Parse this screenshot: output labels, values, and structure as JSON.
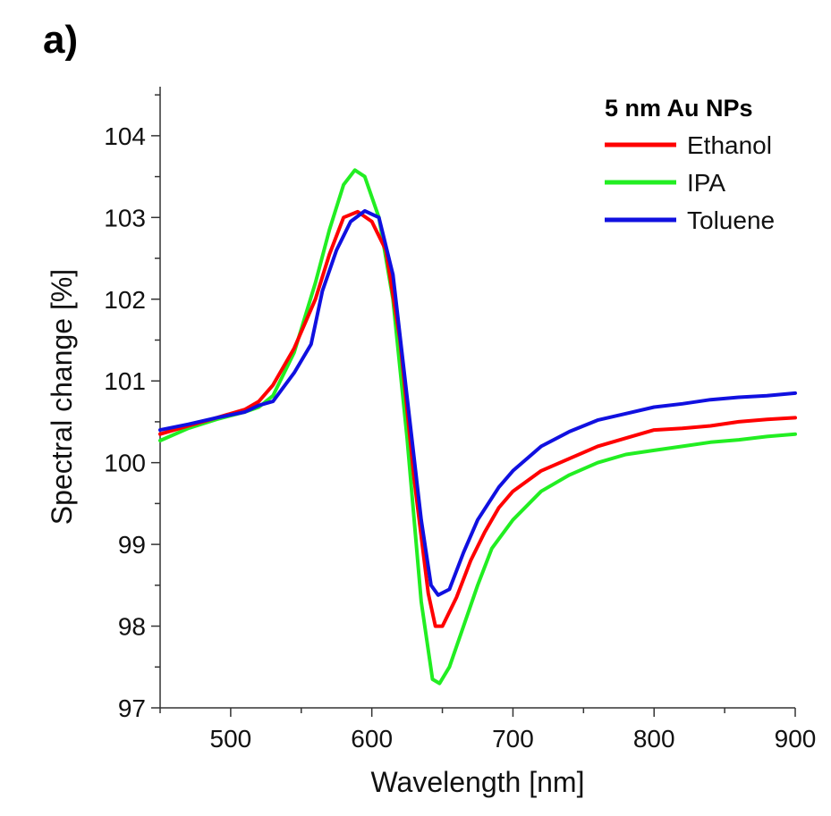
{
  "panel_label": "a)",
  "chart_data": {
    "type": "line",
    "xlabel": "Wavelength [nm]",
    "ylabel": "Spectral change [%]",
    "xlim": [
      450,
      900
    ],
    "ylim": [
      97,
      104.6
    ],
    "x_ticks": [
      500,
      600,
      700,
      800,
      900
    ],
    "y_ticks": [
      97,
      98,
      99,
      100,
      101,
      102,
      103,
      104
    ],
    "grid": false,
    "legend": {
      "title": "5 nm Au NPs",
      "position": "top-right"
    },
    "colors": {
      "Ethanol": "#ff0000",
      "IPA": "#22ee22",
      "Toluene": "#1010e0"
    },
    "series": [
      {
        "name": "Ethanol",
        "color": "#ff0000",
        "points": [
          [
            450,
            100.35
          ],
          [
            470,
            100.45
          ],
          [
            490,
            100.55
          ],
          [
            510,
            100.65
          ],
          [
            520,
            100.75
          ],
          [
            530,
            100.95
          ],
          [
            545,
            101.4
          ],
          [
            560,
            102.0
          ],
          [
            570,
            102.55
          ],
          [
            580,
            103.0
          ],
          [
            590,
            103.07
          ],
          [
            600,
            102.95
          ],
          [
            610,
            102.6
          ],
          [
            620,
            101.5
          ],
          [
            630,
            99.8
          ],
          [
            640,
            98.4
          ],
          [
            645,
            98.0
          ],
          [
            650,
            98.0
          ],
          [
            660,
            98.35
          ],
          [
            670,
            98.8
          ],
          [
            680,
            99.15
          ],
          [
            690,
            99.45
          ],
          [
            700,
            99.65
          ],
          [
            720,
            99.9
          ],
          [
            740,
            100.05
          ],
          [
            760,
            100.2
          ],
          [
            780,
            100.3
          ],
          [
            800,
            100.4
          ],
          [
            820,
            100.42
          ],
          [
            840,
            100.45
          ],
          [
            860,
            100.5
          ],
          [
            880,
            100.53
          ],
          [
            900,
            100.55
          ]
        ]
      },
      {
        "name": "IPA",
        "color": "#22ee22",
        "points": [
          [
            450,
            100.27
          ],
          [
            470,
            100.42
          ],
          [
            490,
            100.53
          ],
          [
            510,
            100.62
          ],
          [
            520,
            100.68
          ],
          [
            530,
            100.82
          ],
          [
            545,
            101.35
          ],
          [
            560,
            102.2
          ],
          [
            570,
            102.85
          ],
          [
            580,
            103.4
          ],
          [
            588,
            103.58
          ],
          [
            595,
            103.5
          ],
          [
            605,
            103.0
          ],
          [
            615,
            102.0
          ],
          [
            625,
            100.3
          ],
          [
            635,
            98.3
          ],
          [
            643,
            97.35
          ],
          [
            648,
            97.3
          ],
          [
            655,
            97.5
          ],
          [
            665,
            98.0
          ],
          [
            675,
            98.5
          ],
          [
            685,
            98.95
          ],
          [
            700,
            99.3
          ],
          [
            720,
            99.65
          ],
          [
            740,
            99.85
          ],
          [
            760,
            100.0
          ],
          [
            780,
            100.1
          ],
          [
            800,
            100.15
          ],
          [
            820,
            100.2
          ],
          [
            840,
            100.25
          ],
          [
            860,
            100.28
          ],
          [
            880,
            100.32
          ],
          [
            900,
            100.35
          ]
        ]
      },
      {
        "name": "Toluene",
        "color": "#1010e0",
        "points": [
          [
            450,
            100.4
          ],
          [
            470,
            100.47
          ],
          [
            490,
            100.55
          ],
          [
            510,
            100.62
          ],
          [
            520,
            100.7
          ],
          [
            530,
            100.75
          ],
          [
            545,
            101.1
          ],
          [
            557,
            101.45
          ],
          [
            565,
            102.1
          ],
          [
            575,
            102.6
          ],
          [
            585,
            102.95
          ],
          [
            595,
            103.08
          ],
          [
            605,
            103.0
          ],
          [
            615,
            102.3
          ],
          [
            625,
            100.8
          ],
          [
            635,
            99.3
          ],
          [
            642,
            98.5
          ],
          [
            647,
            98.38
          ],
          [
            655,
            98.45
          ],
          [
            665,
            98.9
          ],
          [
            675,
            99.3
          ],
          [
            690,
            99.7
          ],
          [
            700,
            99.9
          ],
          [
            720,
            100.2
          ],
          [
            740,
            100.38
          ],
          [
            760,
            100.52
          ],
          [
            780,
            100.6
          ],
          [
            800,
            100.68
          ],
          [
            820,
            100.72
          ],
          [
            840,
            100.77
          ],
          [
            860,
            100.8
          ],
          [
            880,
            100.82
          ],
          [
            900,
            100.85
          ]
        ]
      }
    ]
  }
}
